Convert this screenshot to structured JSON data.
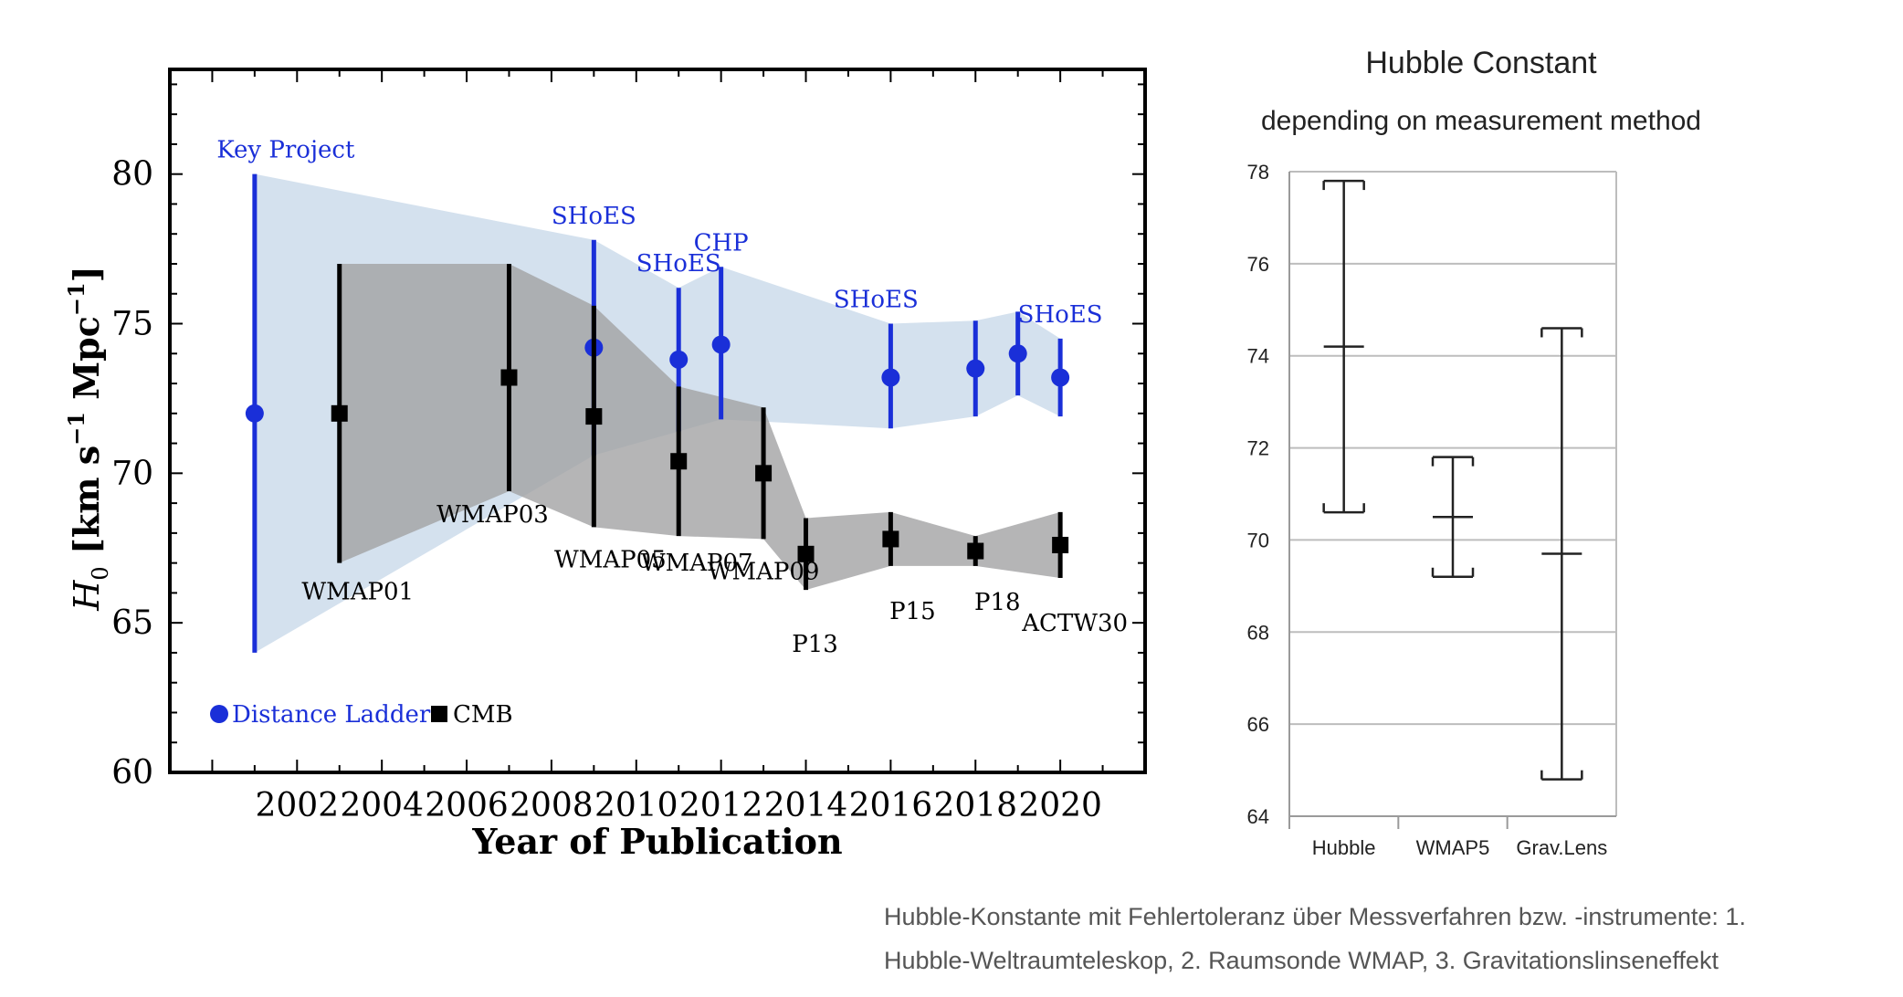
{
  "colors": {
    "ladder": "#1a2fd8",
    "cmb": "#000000",
    "ladder_band": "#d4e1ee",
    "cmb_band": "#a0a0a2",
    "grid": "#bdbdbd",
    "caption": "#555555"
  },
  "chart_data": [
    {
      "type": "scatter",
      "xlabel": "Year of Publication",
      "ylabel": "H0 [km s-1 Mpc-1]",
      "ylabel_parts": {
        "symbol": "H",
        "sub": "0",
        "unit_a": " [km s",
        "sup_a": "−1",
        "unit_b": " Mpc",
        "sup_b": "−1",
        "close": "]"
      },
      "xlim": [
        1999,
        2022
      ],
      "ylim": [
        60,
        83.5
      ],
      "x_ticks": [
        2002,
        2004,
        2006,
        2008,
        2010,
        2012,
        2014,
        2016,
        2018,
        2020
      ],
      "y_ticks": [
        60,
        65,
        70,
        75,
        80
      ],
      "legend": {
        "placement": "bottom-left",
        "entries": [
          {
            "name": "Distance Ladder",
            "marker": "circle"
          },
          {
            "name": "CMB",
            "marker": "square"
          }
        ]
      },
      "series": [
        {
          "name": "Distance Ladder",
          "marker": "circle",
          "points": [
            {
              "x": 2001,
              "y": 72.0,
              "low": 64.0,
              "high": 80.0,
              "label": "Key Project"
            },
            {
              "x": 2009,
              "y": 74.2,
              "low": 70.6,
              "high": 77.8,
              "label": "SHoES"
            },
            {
              "x": 2011,
              "y": 73.8,
              "low": 71.4,
              "high": 76.2,
              "label": "SHoES"
            },
            {
              "x": 2012,
              "y": 74.3,
              "low": 71.8,
              "high": 76.9,
              "label": "CHP"
            },
            {
              "x": 2016,
              "y": 73.2,
              "low": 71.5,
              "high": 75.0,
              "label": "SHoES"
            },
            {
              "x": 2018,
              "y": 73.5,
              "low": 71.9,
              "high": 75.1,
              "label": ""
            },
            {
              "x": 2019,
              "y": 74.0,
              "low": 72.6,
              "high": 75.4,
              "label": ""
            },
            {
              "x": 2020,
              "y": 73.2,
              "low": 71.9,
              "high": 74.5,
              "label": "SHoES"
            }
          ]
        },
        {
          "name": "CMB",
          "marker": "square",
          "points": [
            {
              "x": 2003,
              "y": 72.0,
              "low": 67.0,
              "high": 77.0,
              "label": "WMAP01"
            },
            {
              "x": 2007,
              "y": 73.2,
              "low": 69.4,
              "high": 77.0,
              "label": "WMAP03"
            },
            {
              "x": 2009,
              "y": 71.9,
              "low": 68.2,
              "high": 75.6,
              "label": "WMAP05"
            },
            {
              "x": 2011,
              "y": 70.4,
              "low": 67.9,
              "high": 72.9,
              "label": "WMAP07"
            },
            {
              "x": 2013,
              "y": 70.0,
              "low": 67.8,
              "high": 72.2,
              "label": "WMAP09"
            },
            {
              "x": 2014,
              "y": 67.3,
              "low": 66.1,
              "high": 68.5,
              "label": "P13"
            },
            {
              "x": 2016,
              "y": 67.8,
              "low": 66.9,
              "high": 68.7,
              "label": "P15"
            },
            {
              "x": 2018,
              "y": 67.4,
              "low": 66.9,
              "high": 67.9,
              "label": "P18"
            },
            {
              "x": 2020,
              "y": 67.6,
              "low": 66.5,
              "high": 68.7,
              "label": "ACTW30"
            }
          ]
        }
      ]
    },
    {
      "type": "scatter",
      "title": "Hubble Constant",
      "subtitle": "depending on measurement method",
      "categories": [
        "Hubble",
        "WMAP5",
        "Grav.Lens"
      ],
      "ylim": [
        64,
        78
      ],
      "y_ticks": [
        64,
        66,
        68,
        70,
        72,
        74,
        76,
        78
      ],
      "grid": true,
      "values": [
        74.2,
        70.5,
        69.7
      ],
      "low": [
        70.6,
        69.2,
        64.8
      ],
      "high": [
        77.8,
        71.8,
        74.6
      ]
    }
  ],
  "caption": {
    "line1": "Hubble-Konstante mit Fehlertoleranz über Messverfahren bzw. -instrumente: 1.",
    "line2": "Hubble-Weltraumteleskop, 2. Raumsonde WMAP, 3. Gravitationslinseneffekt"
  }
}
